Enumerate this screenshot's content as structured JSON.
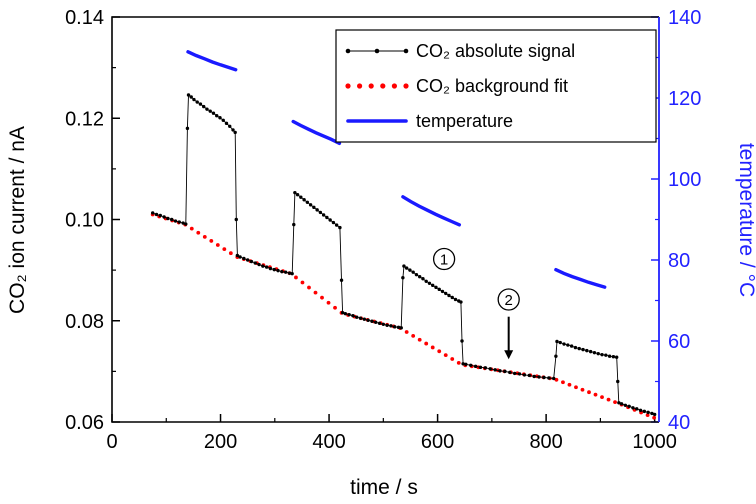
{
  "chart_data": {
    "type": "line",
    "title": "",
    "xlabel": "time / s",
    "ylabel_left": "CO₂ ion current / nA",
    "ylabel_right": "temperature / °C",
    "xlim": [
      0,
      1008
    ],
    "ylim_left": [
      0.06,
      0.14
    ],
    "ylim_right": [
      40,
      140
    ],
    "grid": false,
    "legend_position": "top-right-inside",
    "x_major_ticks": [
      0,
      200,
      400,
      600,
      800,
      1000
    ],
    "x_tick_labels": [
      "0",
      "200",
      "400",
      "600",
      "800",
      "1000"
    ],
    "x_minor_ticks": [
      100,
      300,
      500,
      700,
      900
    ],
    "y_left_major_ticks": [
      0.06,
      0.08,
      0.1,
      0.12,
      0.14
    ],
    "y_left_tick_labels": [
      "0.06",
      "0.08",
      "0.10",
      "0.12",
      "0.14"
    ],
    "y_left_minor_ticks": [
      0.07,
      0.09,
      0.11,
      0.13
    ],
    "y_right_major_ticks": [
      40,
      60,
      80,
      100,
      120,
      140
    ],
    "y_right_tick_labels": [
      "40",
      "60",
      "80",
      "100",
      "120",
      "140"
    ],
    "y_right_minor_ticks": [
      50,
      70,
      90,
      110,
      130
    ],
    "colors": {
      "signal": "#000000",
      "background_fit": "#ff0000",
      "temperature": "#1a1aff",
      "right_axis": "#2222ff",
      "frame": "#000000"
    },
    "legend": [
      {
        "label": "CO₂ absolute signal",
        "style": "black-line-with-dots"
      },
      {
        "label": "CO₂ background fit",
        "style": "red-dotted"
      },
      {
        "label": "temperature",
        "style": "blue-solid"
      }
    ],
    "series": [
      {
        "name": "CO₂ absolute signal",
        "axis": "left",
        "type": "scatter-line",
        "points": [
          [
            75,
            0.1013
          ],
          [
            82,
            0.101
          ],
          [
            89,
            0.1008
          ],
          [
            96,
            0.1005
          ],
          [
            103,
            0.1002
          ],
          [
            110,
            0.1
          ],
          [
            117,
            0.0997
          ],
          [
            124,
            0.0995
          ],
          [
            131,
            0.0993
          ],
          [
            136,
            0.0991
          ],
          [
            139,
            0.118
          ],
          [
            141,
            0.1246
          ],
          [
            146,
            0.1242
          ],
          [
            151,
            0.1237
          ],
          [
            157,
            0.1232
          ],
          [
            163,
            0.1228
          ],
          [
            169,
            0.1223
          ],
          [
            175,
            0.1218
          ],
          [
            181,
            0.1214
          ],
          [
            187,
            0.121
          ],
          [
            193,
            0.1205
          ],
          [
            199,
            0.1201
          ],
          [
            205,
            0.1196
          ],
          [
            211,
            0.119
          ],
          [
            217,
            0.1184
          ],
          [
            223,
            0.1177
          ],
          [
            227,
            0.1172
          ],
          [
            229,
            0.1
          ],
          [
            231,
            0.0929
          ],
          [
            236,
            0.0926
          ],
          [
            243,
            0.0923
          ],
          [
            250,
            0.092
          ],
          [
            257,
            0.0917
          ],
          [
            264,
            0.0914
          ],
          [
            271,
            0.0911
          ],
          [
            278,
            0.0908
          ],
          [
            285,
            0.0906
          ],
          [
            292,
            0.0903
          ],
          [
            299,
            0.0901
          ],
          [
            306,
            0.0899
          ],
          [
            313,
            0.0897
          ],
          [
            320,
            0.0896
          ],
          [
            327,
            0.0894
          ],
          [
            332,
            0.0893
          ],
          [
            335,
            0.099
          ],
          [
            337,
            0.1053
          ],
          [
            342,
            0.1049
          ],
          [
            348,
            0.1044
          ],
          [
            354,
            0.1039
          ],
          [
            360,
            0.1034
          ],
          [
            366,
            0.1029
          ],
          [
            372,
            0.1024
          ],
          [
            378,
            0.1019
          ],
          [
            384,
            0.1014
          ],
          [
            390,
            0.1009
          ],
          [
            396,
            0.1004
          ],
          [
            402,
            0.0999
          ],
          [
            408,
            0.0994
          ],
          [
            414,
            0.0989
          ],
          [
            420,
            0.0984
          ],
          [
            423,
            0.088
          ],
          [
            425,
            0.0816
          ],
          [
            430,
            0.0814
          ],
          [
            437,
            0.0812
          ],
          [
            444,
            0.081
          ],
          [
            451,
            0.0807
          ],
          [
            458,
            0.0805
          ],
          [
            465,
            0.0803
          ],
          [
            472,
            0.0801
          ],
          [
            479,
            0.0799
          ],
          [
            486,
            0.0797
          ],
          [
            493,
            0.0795
          ],
          [
            500,
            0.0793
          ],
          [
            507,
            0.0791
          ],
          [
            514,
            0.079
          ],
          [
            521,
            0.0788
          ],
          [
            528,
            0.0787
          ],
          [
            533,
            0.0786
          ],
          [
            536,
            0.0885
          ],
          [
            538,
            0.0908
          ],
          [
            543,
            0.0904
          ],
          [
            549,
            0.09
          ],
          [
            555,
            0.0896
          ],
          [
            561,
            0.0891
          ],
          [
            567,
            0.0887
          ],
          [
            573,
            0.0883
          ],
          [
            579,
            0.0878
          ],
          [
            585,
            0.0874
          ],
          [
            591,
            0.087
          ],
          [
            597,
            0.0866
          ],
          [
            603,
            0.0862
          ],
          [
            609,
            0.0858
          ],
          [
            615,
            0.0854
          ],
          [
            621,
            0.085
          ],
          [
            627,
            0.0846
          ],
          [
            633,
            0.0842
          ],
          [
            639,
            0.0839
          ],
          [
            643,
            0.0837
          ],
          [
            645,
            0.076
          ],
          [
            647,
            0.0715
          ],
          [
            652,
            0.0714
          ],
          [
            661,
            0.0712
          ],
          [
            670,
            0.071
          ],
          [
            679,
            0.0708
          ],
          [
            688,
            0.0707
          ],
          [
            697,
            0.0705
          ],
          [
            706,
            0.0703
          ],
          [
            715,
            0.0701
          ],
          [
            724,
            0.07
          ],
          [
            733,
            0.0698
          ],
          [
            742,
            0.0696
          ],
          [
            751,
            0.0695
          ],
          [
            760,
            0.0693
          ],
          [
            769,
            0.0692
          ],
          [
            778,
            0.069
          ],
          [
            787,
            0.0689
          ],
          [
            796,
            0.0688
          ],
          [
            805,
            0.0687
          ],
          [
            814,
            0.0686
          ],
          [
            818,
            0.073
          ],
          [
            820,
            0.0759
          ],
          [
            826,
            0.0757
          ],
          [
            833,
            0.0754
          ],
          [
            840,
            0.0752
          ],
          [
            847,
            0.075
          ],
          [
            854,
            0.0747
          ],
          [
            861,
            0.0745
          ],
          [
            868,
            0.0743
          ],
          [
            875,
            0.0741
          ],
          [
            882,
            0.0739
          ],
          [
            889,
            0.0737
          ],
          [
            896,
            0.0735
          ],
          [
            903,
            0.0733
          ],
          [
            910,
            0.0732
          ],
          [
            917,
            0.073
          ],
          [
            924,
            0.0729
          ],
          [
            930,
            0.0728
          ],
          [
            932,
            0.068
          ],
          [
            934,
            0.0638
          ],
          [
            939,
            0.0636
          ],
          [
            946,
            0.0633
          ],
          [
            953,
            0.0631
          ],
          [
            960,
            0.0628
          ],
          [
            967,
            0.0626
          ],
          [
            974,
            0.0623
          ],
          [
            981,
            0.0621
          ],
          [
            988,
            0.0619
          ],
          [
            995,
            0.0617
          ],
          [
            1000,
            0.0615
          ]
        ]
      },
      {
        "name": "CO₂ background fit",
        "axis": "left",
        "type": "dotted-curve",
        "points": [
          [
            75,
            0.101
          ],
          [
            135,
            0.099
          ],
          [
            230,
            0.0926
          ],
          [
            330,
            0.0893
          ],
          [
            425,
            0.0814
          ],
          [
            530,
            0.0786
          ],
          [
            645,
            0.0713
          ],
          [
            815,
            0.0685
          ],
          [
            935,
            0.0636
          ],
          [
            1000,
            0.0608
          ]
        ]
      },
      {
        "name": "temperature",
        "axis": "right",
        "type": "line-segments",
        "segments": [
          [
            [
              140,
              131.4
            ],
            [
              155,
              130.5
            ],
            [
              170,
              129.7
            ],
            [
              185,
              128.9
            ],
            [
              200,
              128.2
            ],
            [
              214,
              127.6
            ],
            [
              228,
              127.0
            ]
          ],
          [
            [
              334,
              114.2
            ],
            [
              348,
              113.2
            ],
            [
              362,
              112.3
            ],
            [
              376,
              111.4
            ],
            [
              390,
              110.6
            ],
            [
              404,
              109.8
            ],
            [
              419,
              108.8
            ]
          ],
          [
            [
              536,
              95.6
            ],
            [
              551,
              94.4
            ],
            [
              566,
              93.3
            ],
            [
              581,
              92.3
            ],
            [
              596,
              91.3
            ],
            [
              611,
              90.4
            ],
            [
              626,
              89.5
            ],
            [
              640,
              88.7
            ]
          ],
          [
            [
              818,
              77.6
            ],
            [
              833,
              76.7
            ],
            [
              848,
              75.9
            ],
            [
              863,
              75.2
            ],
            [
              878,
              74.5
            ],
            [
              893,
              73.9
            ],
            [
              908,
              73.3
            ]
          ]
        ]
      }
    ],
    "annotations": [
      {
        "type": "circled-number",
        "label": "1",
        "x": 612,
        "y": 0.0922
      },
      {
        "type": "circled-number",
        "label": "2",
        "x": 731,
        "y": 0.0842
      },
      {
        "type": "arrow-down",
        "x": 731,
        "y_from": 0.0808,
        "y_to": 0.0724
      }
    ]
  }
}
